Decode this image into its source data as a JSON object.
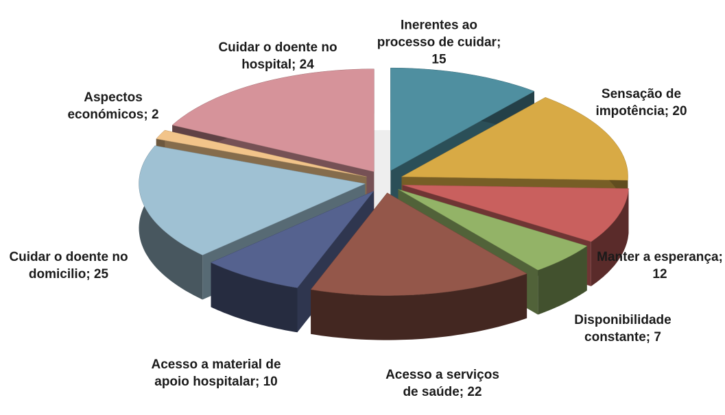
{
  "chart_data": {
    "type": "pie",
    "three_d": true,
    "exploded": true,
    "categories": [
      "Inerentes ao processo de cuidar",
      "Sensação de impotência",
      "Manter a esperança",
      "Disponibilidade constante",
      "Acesso a serviços de saúde",
      "Acesso a material de apoio hospitalar",
      "Cuidar o doente no domicilio",
      "Aspectos económicos",
      "Cuidar o doente no hospital"
    ],
    "values": [
      15,
      20,
      12,
      7,
      22,
      10,
      25,
      2,
      24
    ],
    "value_labels": [
      "Inerentes ao processo de cuidar; 15",
      "Sensação de impotência; 20",
      "Manter a esperança; 12",
      "Disponibilidade constante; 7",
      "Acesso a serviços de saúde; 22",
      "Acesso a material de apoio hospitalar; 10",
      "Cuidar o doente no domicilio; 25",
      "Aspectos económicos; 2",
      "Cuidar o doente no hospital; 24"
    ],
    "colors": [
      "#4f8fa0",
      "#d8aa45",
      "#c9605e",
      "#93b367",
      "#94574a",
      "#55628f",
      "#9fc1d3",
      "#f2c48a",
      "#d6939a"
    ]
  }
}
